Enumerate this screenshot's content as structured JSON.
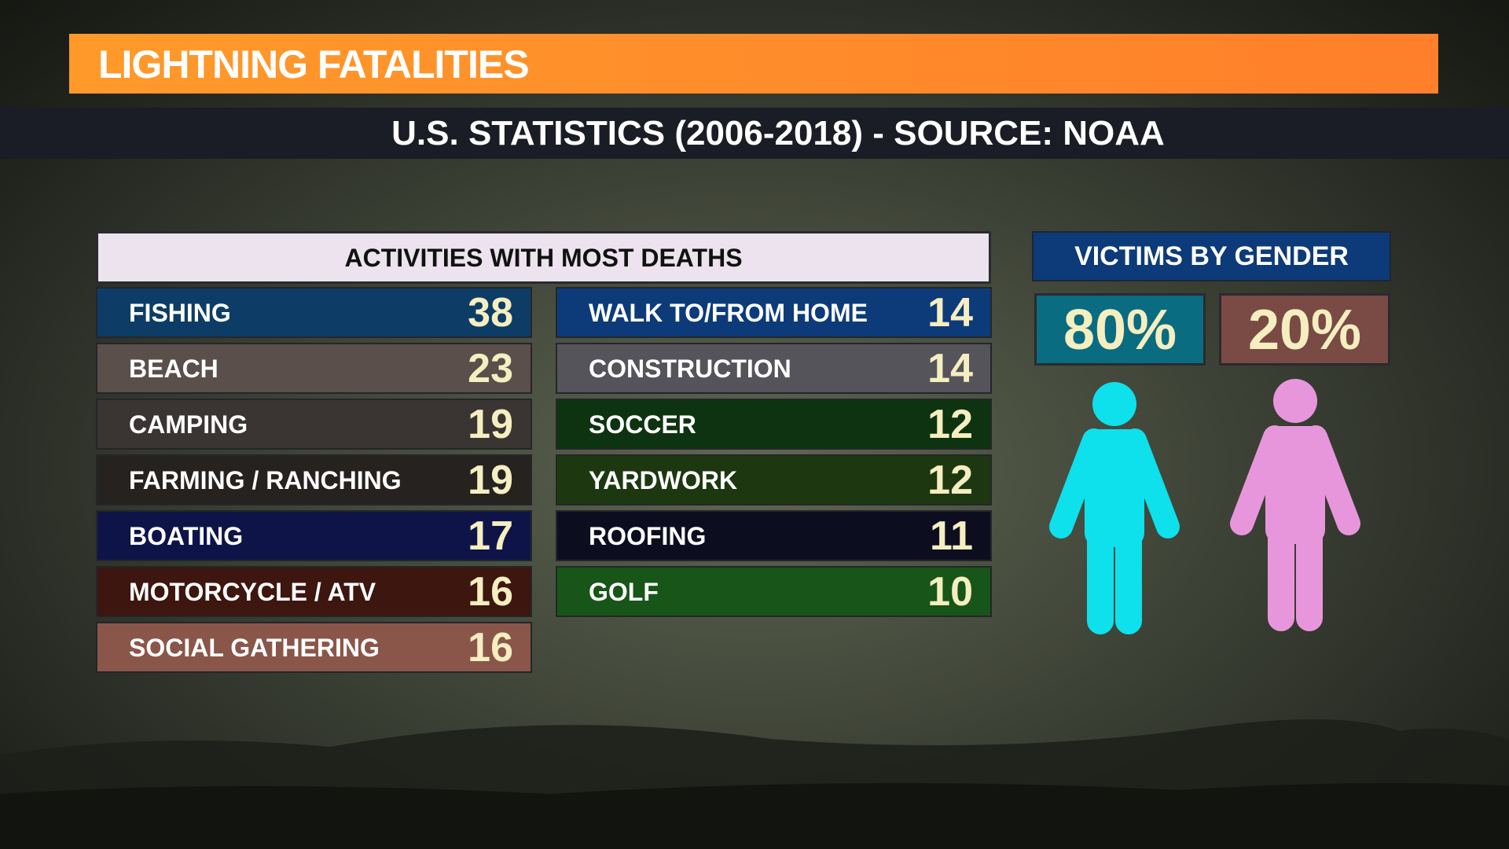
{
  "header": {
    "title": "LIGHTNING FATALITIES",
    "subtitle": "U.S. STATISTICS (2006-2018) - SOURCE:  NOAA"
  },
  "activities": {
    "title": "ACTIVITIES WITH MOST DEATHS",
    "rows": [
      {
        "label": "FISHING",
        "value": 38
      },
      {
        "label": "BEACH",
        "value": 23
      },
      {
        "label": "CAMPING",
        "value": 19
      },
      {
        "label": "FARMING / RANCHING",
        "value": 19
      },
      {
        "label": "BOATING",
        "value": 17
      },
      {
        "label": "MOTORCYCLE / ATV",
        "value": 16
      },
      {
        "label": "SOCIAL GATHERING",
        "value": 16
      },
      {
        "label": "WALK TO/FROM HOME",
        "value": 14
      },
      {
        "label": "CONSTRUCTION",
        "value": 14
      },
      {
        "label": "SOCCER",
        "value": 12
      },
      {
        "label": "YARDWORK",
        "value": 12
      },
      {
        "label": "ROOFING",
        "value": 11
      },
      {
        "label": "GOLF",
        "value": 10
      }
    ]
  },
  "gender": {
    "title": "VICTIMS BY GENDER",
    "male": "80%",
    "female": "20%"
  }
}
